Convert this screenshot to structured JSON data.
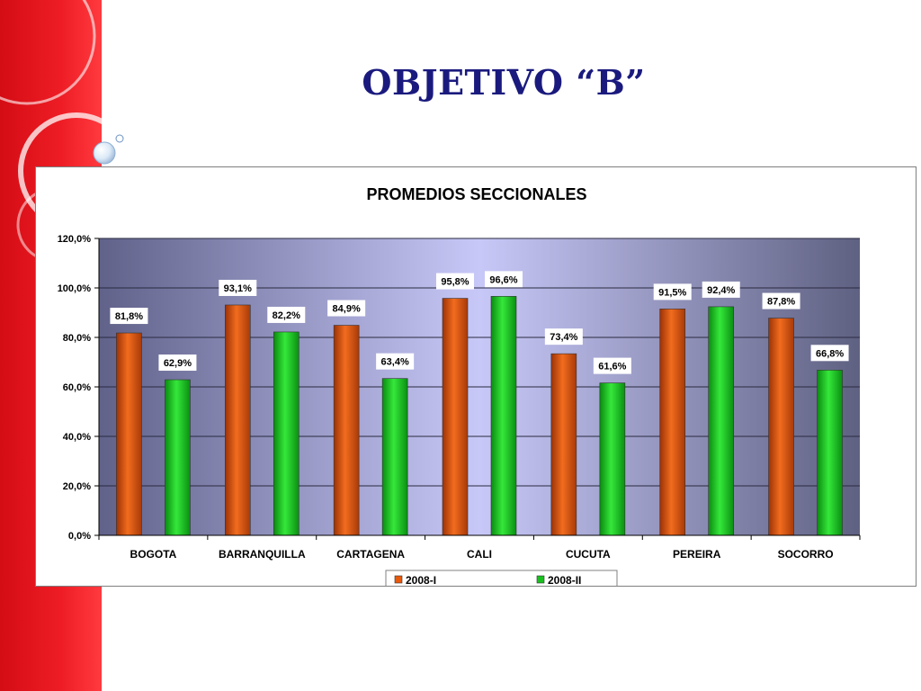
{
  "slide": {
    "title": "OBJETIVO “B”"
  },
  "colors": {
    "side_band": "#e8141c",
    "title": "#1a1a7e",
    "series_2008_I": "#e8590c",
    "series_2008_II": "#19c11f"
  },
  "chart_data": {
    "type": "bar",
    "title": "PROMEDIOS SECCIONALES",
    "xlabel": "",
    "ylabel": "",
    "categories": [
      "BOGOTA",
      "BARRANQUILLA",
      "CARTAGENA",
      "CALI",
      "CUCUTA",
      "PEREIRA",
      "SOCORRO"
    ],
    "series": [
      {
        "name": "2008-I",
        "color": "#e8590c",
        "values": [
          81.8,
          93.1,
          84.9,
          95.8,
          73.4,
          91.5,
          87.8
        ]
      },
      {
        "name": "2008-II",
        "color": "#19c11f",
        "values": [
          62.9,
          82.2,
          63.4,
          96.6,
          61.6,
          92.4,
          66.8
        ]
      }
    ],
    "value_labels": [
      [
        "81,8%",
        "93,1%",
        "84,9%",
        "95,8%",
        "73,4%",
        "91,5%",
        "87,8%"
      ],
      [
        "62,9%",
        "82,2%",
        "63,4%",
        "96,6%",
        "61,6%",
        "92,4%",
        "66,8%"
      ]
    ],
    "ylim": [
      0,
      120
    ],
    "yticks": [
      0,
      20,
      40,
      60,
      80,
      100,
      120
    ],
    "ytick_labels": [
      "0,0%",
      "20,0%",
      "40,0%",
      "60,0%",
      "80,0%",
      "100,0%",
      "120,0%"
    ],
    "grid": true,
    "legend": "bottom"
  }
}
